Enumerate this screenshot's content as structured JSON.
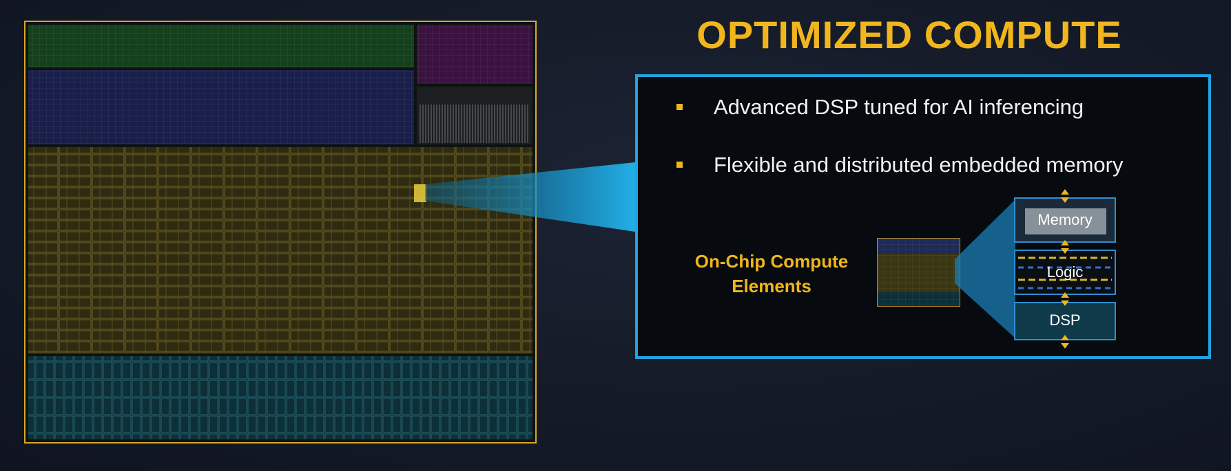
{
  "title": "OPTIMIZED COMPUTE",
  "bullets": [
    "Advanced DSP tuned for AI inferencing",
    "Flexible and distributed embedded memory"
  ],
  "compute_label": {
    "line1": "On-Chip Compute",
    "line2": "Elements"
  },
  "layers": {
    "memory": "Memory",
    "logic": "Logic",
    "dsp": "DSP"
  },
  "colors": {
    "accent": "#f1b61d",
    "frame_blue": "#1fa4e3",
    "region_green": "#14401c",
    "region_magenta": "#3a1240",
    "region_navy": "#1a1f4a",
    "region_yellow": "#3a3512",
    "region_teal": "#0d2f38"
  }
}
